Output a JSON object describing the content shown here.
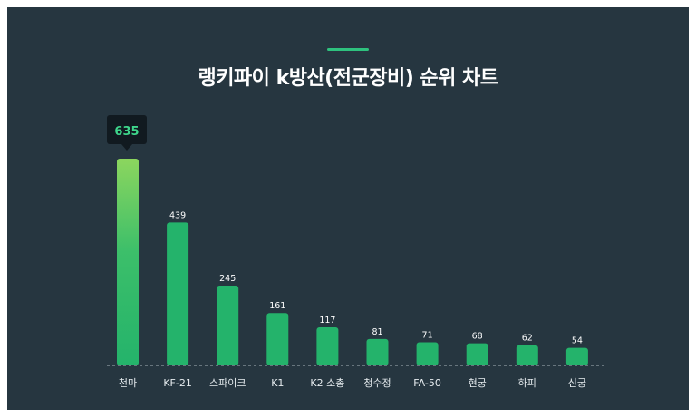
{
  "page": {
    "title": "랭키파이 k방산(전군장비) 순위 차트"
  },
  "colors": {
    "background": "#263640",
    "bar": "#24b36b",
    "bar_top_highlight": "#8cd65e",
    "accent": "#2ec27e",
    "tooltip_bg": "#111a20",
    "tooltip_text": "#3ed68b"
  },
  "chart_data": {
    "type": "bar",
    "title": "랭키파이 k방산(전군장비) 순위 차트",
    "categories": [
      "천마",
      "KF-21",
      "스파이크",
      "K1",
      "K2 소총",
      "청수정",
      "FA-50",
      "현궁",
      "하피",
      "신궁"
    ],
    "values": [
      635,
      439,
      245,
      161,
      117,
      81,
      71,
      68,
      62,
      54
    ],
    "ylim": [
      0,
      635
    ],
    "grid": false,
    "highlighted": {
      "category": "천마",
      "tooltip": "635"
    }
  }
}
